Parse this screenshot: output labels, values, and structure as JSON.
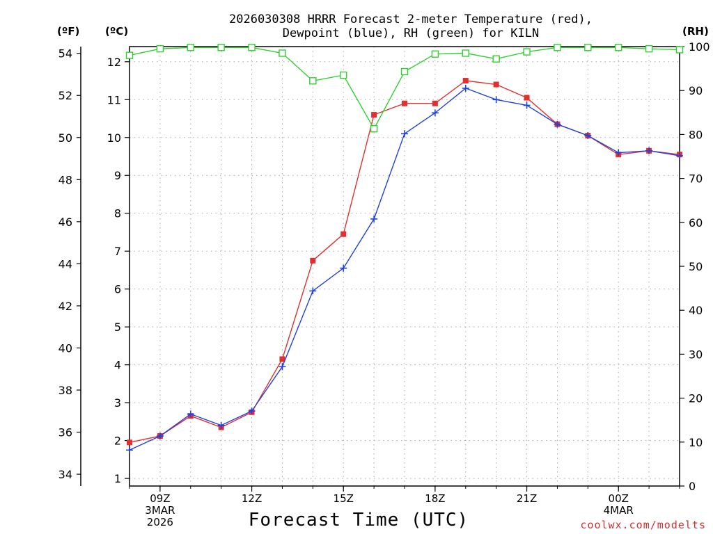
{
  "chart_data": {
    "type": "line",
    "title_line1": "2026030308 HRRR Forecast 2-meter Temperature (red),",
    "title_line2": "Dewpoint (blue), RH (green) for KILN",
    "xlabel": "Forecast Time (UTC)",
    "credit": "coolwx.com/modelts",
    "unit_left_f": "(ºF)",
    "unit_left_c": "(ºC)",
    "unit_right": "(RH)",
    "x_hours": [
      0,
      1,
      2,
      3,
      4,
      5,
      6,
      7,
      8,
      9,
      10,
      11,
      12,
      13,
      14,
      15,
      16,
      17,
      18
    ],
    "xlim": [
      0,
      18
    ],
    "x_ticks": [
      {
        "x": 1,
        "lines": [
          "09Z",
          "3MAR",
          "2026"
        ]
      },
      {
        "x": 4,
        "lines": [
          "12Z"
        ]
      },
      {
        "x": 7,
        "lines": [
          "15Z"
        ]
      },
      {
        "x": 10,
        "lines": [
          "18Z"
        ]
      },
      {
        "x": 13,
        "lines": [
          "21Z"
        ]
      },
      {
        "x": 16,
        "lines": [
          "00Z",
          "4MAR"
        ]
      }
    ],
    "celsius_axis": {
      "ylim": [
        0.8,
        12.4
      ],
      "ticks": [
        1,
        2,
        3,
        4,
        5,
        6,
        7,
        8,
        9,
        10,
        11,
        12
      ]
    },
    "fahrenheit_axis": {
      "ticks": [
        34,
        36,
        38,
        40,
        42,
        44,
        46,
        48,
        50,
        52,
        54
      ]
    },
    "rh_axis": {
      "ylim": [
        0,
        100
      ],
      "ticks": [
        0,
        10,
        20,
        30,
        40,
        50,
        60,
        70,
        80,
        90,
        100
      ]
    },
    "series": [
      {
        "name": "Temperature",
        "axis": "C",
        "color": "#e03030",
        "marker": "filled-square",
        "values": [
          1.95,
          2.12,
          2.65,
          2.35,
          2.75,
          4.15,
          6.75,
          7.45,
          10.6,
          10.9,
          10.9,
          11.5,
          11.4,
          11.05,
          10.35,
          10.05,
          9.55,
          9.65,
          9.55
        ]
      },
      {
        "name": "Dewpoint",
        "axis": "C",
        "color": "#2040e0",
        "marker": "plus",
        "values": [
          1.75,
          2.12,
          2.7,
          2.4,
          2.78,
          3.95,
          5.95,
          6.55,
          7.85,
          10.1,
          10.65,
          11.3,
          11.0,
          10.85,
          10.35,
          10.05,
          9.6,
          9.65,
          9.52
        ]
      },
      {
        "name": "RH",
        "axis": "RH",
        "color": "#30d030",
        "marker": "open-square",
        "values": [
          98,
          99.5,
          99.8,
          99.8,
          99.8,
          98.5,
          92.2,
          93.5,
          81.3,
          94.3,
          98.3,
          98.5,
          97.2,
          98.8,
          99.8,
          99.8,
          99.8,
          99.5,
          99.3
        ]
      }
    ]
  }
}
